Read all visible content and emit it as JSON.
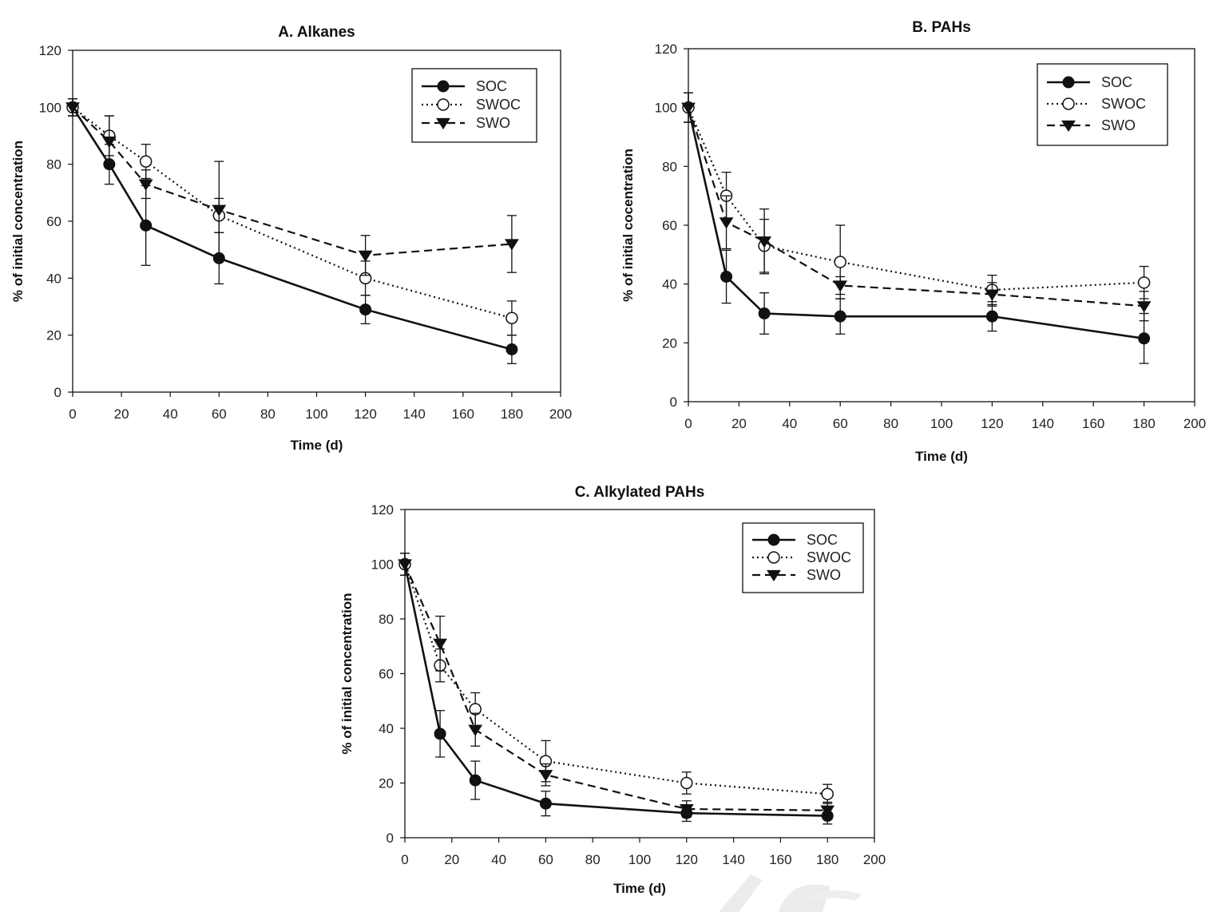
{
  "chart_data": [
    {
      "id": "A",
      "type": "line",
      "title": "A. Alkanes",
      "xlabel": "Time (d)",
      "ylabel": "%  of initial concentration",
      "xlim": [
        0,
        200
      ],
      "ylim": [
        0,
        120
      ],
      "xticks": [
        0,
        20,
        40,
        60,
        80,
        100,
        120,
        140,
        160,
        180,
        200
      ],
      "yticks": [
        0,
        20,
        40,
        60,
        80,
        100,
        120
      ],
      "grid": false,
      "legend_position": "top-right",
      "x": [
        0,
        15,
        30,
        60,
        120,
        180
      ],
      "series": [
        {
          "name": "SOC",
          "marker": "filled-circle",
          "line": "solid",
          "values": [
            100,
            80,
            58.5,
            47,
            29,
            15
          ],
          "errors": [
            3,
            7,
            14,
            9,
            5,
            5
          ]
        },
        {
          "name": "SWOC",
          "marker": "open-circle",
          "line": "dotted",
          "values": [
            100,
            90,
            81,
            62,
            40,
            26
          ],
          "errors": [
            3,
            7,
            6,
            6,
            6,
            6
          ]
        },
        {
          "name": "SWO",
          "marker": "filled-triangle-down",
          "line": "dashed",
          "values": [
            100,
            88,
            73,
            64,
            48,
            52
          ],
          "errors": [
            3,
            9,
            5,
            17,
            7,
            10
          ]
        }
      ]
    },
    {
      "id": "B",
      "type": "line",
      "title": "B. PAHs",
      "xlabel": "Time (d)",
      "ylabel": "%  of initial cocentration",
      "xlim": [
        0,
        200
      ],
      "ylim": [
        0,
        120
      ],
      "xticks": [
        0,
        20,
        40,
        60,
        80,
        100,
        120,
        140,
        160,
        180,
        200
      ],
      "yticks": [
        0,
        20,
        40,
        60,
        80,
        100,
        120
      ],
      "grid": false,
      "legend_position": "top-right",
      "x": [
        0,
        15,
        30,
        60,
        120,
        180
      ],
      "series": [
        {
          "name": "SOC",
          "marker": "filled-circle",
          "line": "solid",
          "values": [
            100,
            42.5,
            30,
            29,
            29,
            21.5
          ],
          "errors": [
            5,
            9,
            7,
            6,
            5,
            8.5
          ]
        },
        {
          "name": "SWOC",
          "marker": "open-circle",
          "line": "dotted",
          "values": [
            100,
            70,
            53,
            47.5,
            38,
            40.5
          ],
          "errors": [
            5,
            8,
            9,
            12.5,
            5,
            5.5
          ]
        },
        {
          "name": "SWO",
          "marker": "filled-triangle-down",
          "line": "dashed",
          "values": [
            100,
            61,
            54.5,
            39.5,
            36.5,
            32.5
          ],
          "errors": [
            5,
            9,
            11,
            3,
            4,
            5
          ]
        }
      ]
    },
    {
      "id": "C",
      "type": "line",
      "title": "C. Alkylated PAHs",
      "xlabel": "Time (d)",
      "ylabel": "%  of initial concentration",
      "xlim": [
        0,
        200
      ],
      "ylim": [
        0,
        120
      ],
      "xticks": [
        0,
        20,
        40,
        60,
        80,
        100,
        120,
        140,
        160,
        180,
        200
      ],
      "yticks": [
        0,
        20,
        40,
        60,
        80,
        100,
        120
      ],
      "grid": false,
      "legend_position": "top-right",
      "x": [
        0,
        15,
        30,
        60,
        120,
        180
      ],
      "series": [
        {
          "name": "SOC",
          "marker": "filled-circle",
          "line": "solid",
          "values": [
            100,
            38,
            21,
            12.5,
            9,
            8
          ],
          "errors": [
            4,
            8.5,
            7,
            4.5,
            3,
            3
          ]
        },
        {
          "name": "SWOC",
          "marker": "open-circle",
          "line": "dotted",
          "values": [
            100,
            63,
            47,
            28,
            20,
            16
          ],
          "errors": [
            4,
            6,
            6,
            7.5,
            4,
            3.5
          ]
        },
        {
          "name": "SWO",
          "marker": "filled-triangle-down",
          "line": "dashed",
          "values": [
            100,
            71,
            39.5,
            23,
            10.5,
            10
          ],
          "errors": [
            4,
            10,
            6,
            4,
            3,
            3
          ]
        }
      ]
    }
  ],
  "colors": {
    "ink": "#111111",
    "background": "#ffffff",
    "watermark": "#e6e6e6"
  }
}
